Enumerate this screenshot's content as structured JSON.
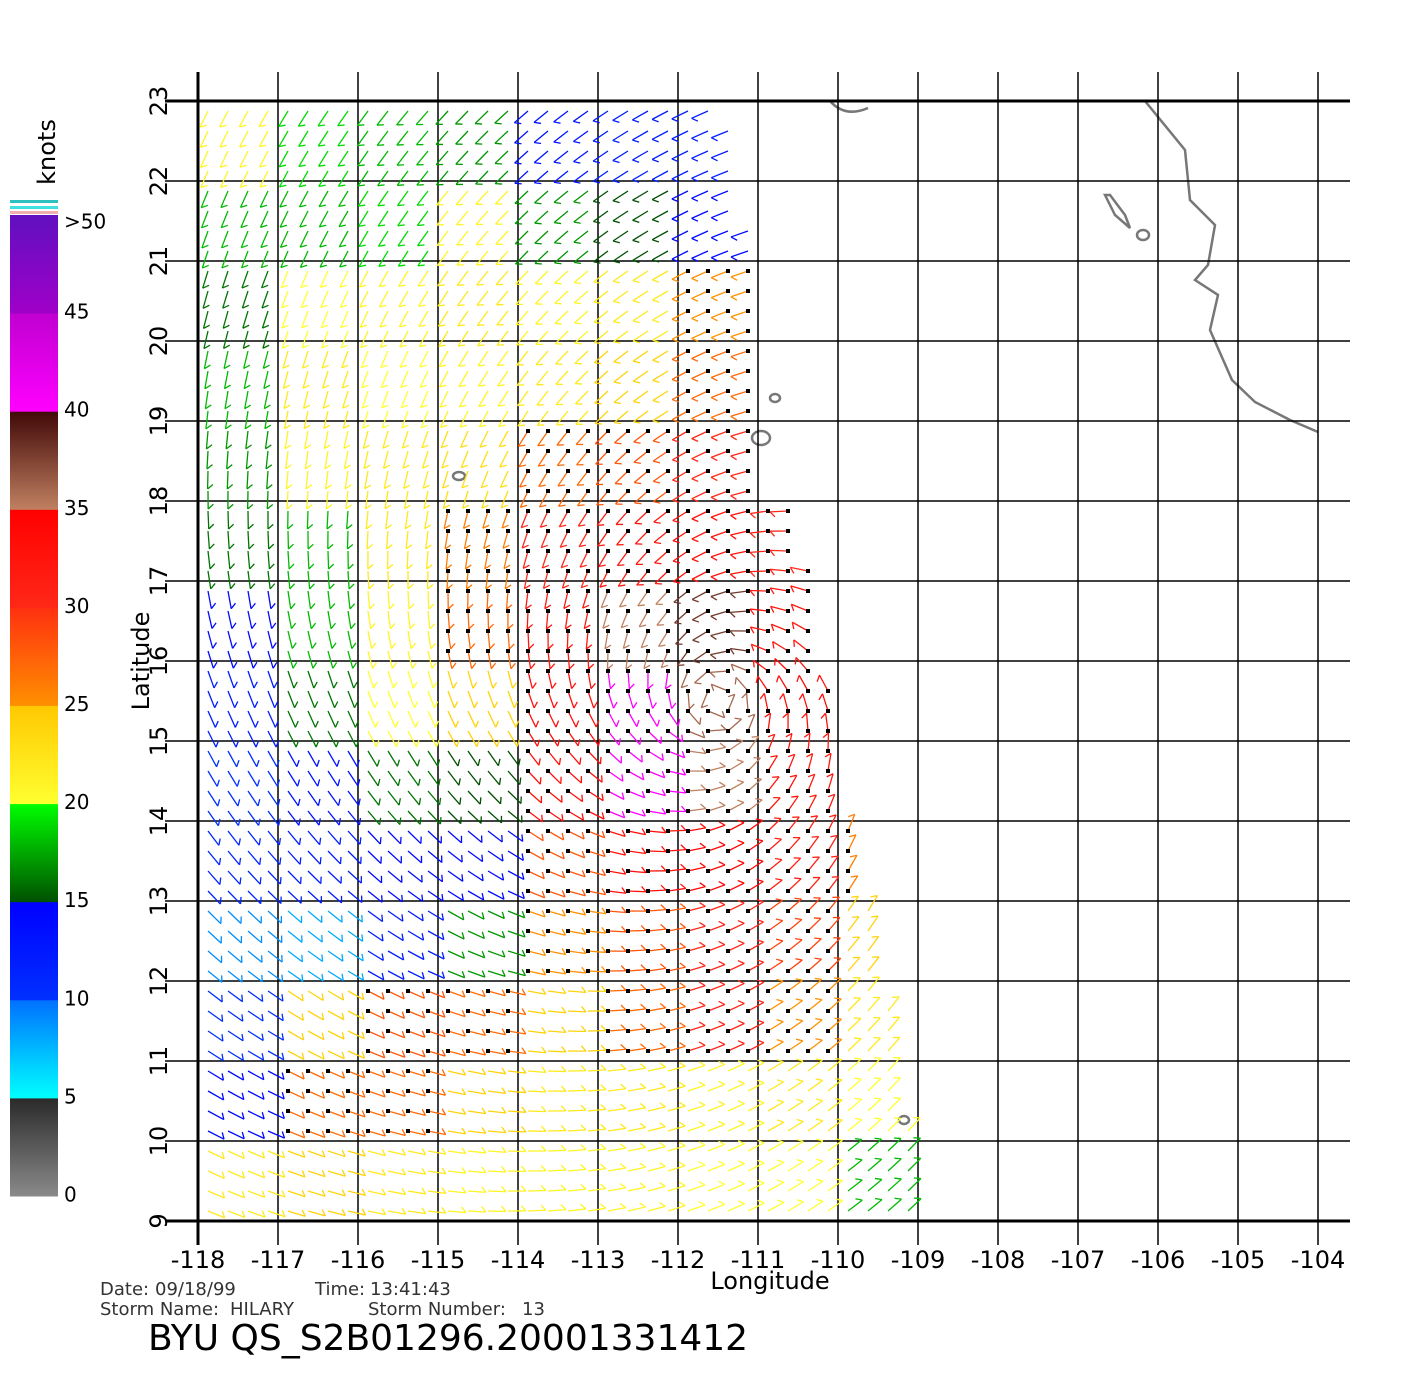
{
  "map": {
    "xlabel": "Longitude",
    "ylabel": "Latitude",
    "xlim": [
      -118,
      -104
    ],
    "ylim": [
      9,
      23
    ],
    "xticks": [
      -118,
      -117,
      -116,
      -115,
      -114,
      -113,
      -112,
      -111,
      -110,
      -109,
      -108,
      -107,
      -106,
      -105,
      -104
    ],
    "yticks": [
      9,
      10,
      11,
      12,
      13,
      14,
      15,
      16,
      17,
      18,
      19,
      20,
      21,
      22,
      23
    ],
    "grid": true
  },
  "colorbar": {
    "label": "knots",
    "lim": [
      0,
      50
    ],
    "ticks": [
      0,
      5,
      10,
      15,
      20,
      25,
      30,
      35,
      40,
      45,
      {
        "value": 50,
        "label": ">50"
      }
    ],
    "colors": [
      [
        "#8a8a8a",
        "#2a2a2a"
      ],
      [
        "#00ffff",
        "#0070ff"
      ],
      [
        "#0030ff",
        "#0000ff"
      ],
      [
        "#005000",
        "#00ff00"
      ],
      [
        "#ffff30",
        "#ffc800"
      ],
      [
        "#ff9000",
        "#ff3010"
      ],
      [
        "#ff2818",
        "#ff0000"
      ],
      [
        "#c08060",
        "#400808"
      ],
      [
        "#ff00ff",
        "#c000d0"
      ],
      [
        "#a000c8",
        "#6010c0"
      ]
    ]
  },
  "wind": {
    "lon": [
      -117.5,
      -116.5,
      -115.5,
      -114.5,
      -113.5,
      -112.5,
      -111.5,
      -110.5,
      -109.5
    ],
    "lat": [
      22.5,
      21.5,
      20.5,
      19.5,
      18.5,
      17.5,
      16.5,
      15.5,
      14.5,
      13.5,
      12.5,
      11.5,
      10.5,
      9.5
    ],
    "speed": [
      [
        21,
        19,
        18,
        17,
        13,
        12,
        12,
        null,
        null
      ],
      [
        18,
        18,
        19,
        21,
        17,
        15,
        14,
        null,
        null
      ],
      [
        16,
        20,
        21,
        22,
        21,
        22,
        25,
        null,
        null
      ],
      [
        18,
        22,
        20,
        21,
        22,
        24,
        27,
        null,
        null
      ],
      [
        17,
        21,
        22,
        23,
        27,
        28,
        30,
        null,
        null
      ],
      [
        16,
        18,
        22,
        26,
        30,
        32,
        33,
        30,
        null
      ],
      [
        14,
        18,
        21,
        27,
        32,
        35,
        38,
        32,
        null
      ],
      [
        12,
        16,
        20,
        24,
        33,
        40,
        36,
        33,
        null
      ],
      [
        10,
        13,
        16,
        15,
        33,
        40,
        35,
        32,
        null
      ],
      [
        11,
        12,
        14,
        14,
        28,
        33,
        34,
        31,
        26
      ],
      [
        9,
        8,
        12,
        17,
        25,
        28,
        30,
        29,
        24
      ],
      [
        10,
        24,
        28,
        27,
        24,
        27,
        30,
        25,
        22
      ],
      [
        14,
        27,
        27,
        24,
        22,
        22,
        21,
        22,
        20
      ],
      [
        22,
        24,
        22,
        21,
        21,
        21,
        20,
        20,
        18
      ]
    ]
  },
  "footer": {
    "date_label": "Date:",
    "date": "09/18/99",
    "time_label": "Time:",
    "time": "13:41:43",
    "storm_name_label": "Storm Name:",
    "storm_name": "HILARY",
    "storm_number_label": "Storm Number:",
    "storm_number": "13",
    "product": "BYU QS_S2B01296.20001331412"
  }
}
